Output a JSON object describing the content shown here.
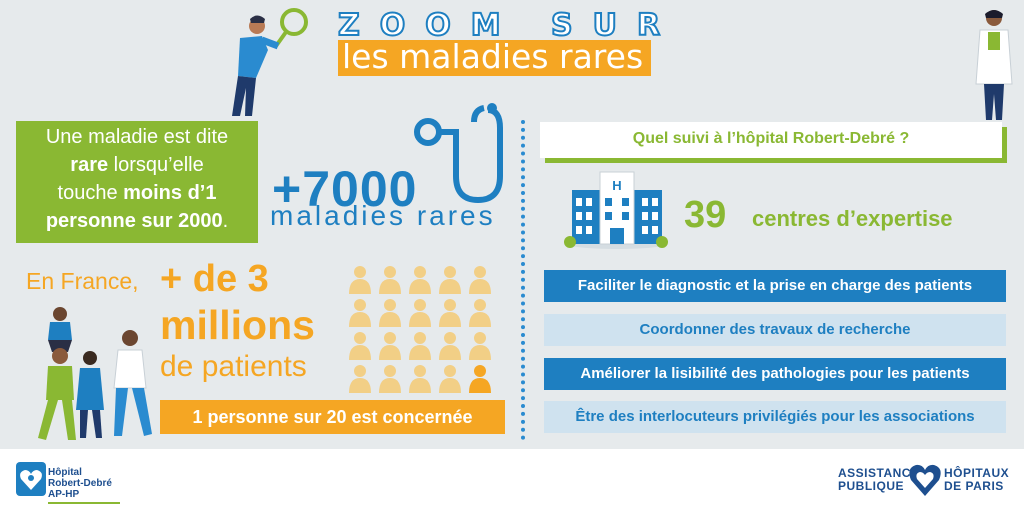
{
  "header": {
    "zoom": "ZOOM SUR",
    "subtitle": "les maladies rares"
  },
  "definition": {
    "line1": "Une maladie est dite",
    "rare": "rare",
    "line2b": " lorsqu’elle",
    "line3": "touche ",
    "bold1": "moins d’1",
    "bold2": "personne sur 2000",
    "end": "."
  },
  "stats": {
    "count": "+7000",
    "count_label": "maladies rares",
    "france_label": "En France,",
    "de3": "+ de 3",
    "millions": "millions",
    "patients": "de patients",
    "ratio": "1  personne sur 20 est concernée"
  },
  "ratio_icons": {
    "total": 20,
    "highlighted": 1,
    "colors": {
      "normal": "#f2cf86",
      "highlight": "#f5a623"
    }
  },
  "hospital": {
    "question": "Quel suivi à l’hôpital Robert-Debré ?",
    "centres_number": "39",
    "centres_label": "centres d’expertise",
    "building_sign": "H",
    "actions": [
      {
        "label": "Faciliter le diagnostic et la prise en charge des patients",
        "style": "solid"
      },
      {
        "label": "Coordonner des travaux de recherche",
        "style": "light"
      },
      {
        "label": "Améliorer la lisibilité des pathologies pour les patients",
        "style": "solid"
      },
      {
        "label": "Être des interlocuteurs privilégiés pour les associations",
        "style": "light"
      }
    ]
  },
  "footer": {
    "rd_line1": "Hôpital",
    "rd_line2": "Robert-Debré",
    "rd_line3": "AP-HP",
    "aphp_l1": "ASSISTANCE",
    "aphp_l2": "PUBLIQUE",
    "aphp_r1": "HÔPITAUX",
    "aphp_r2": "DE PARIS"
  },
  "colors": {
    "blue": "#1e7fc1",
    "green": "#8ab833",
    "orange": "#f5a623",
    "light_blue": "#cfe2ef",
    "background": "#e6eaec"
  }
}
